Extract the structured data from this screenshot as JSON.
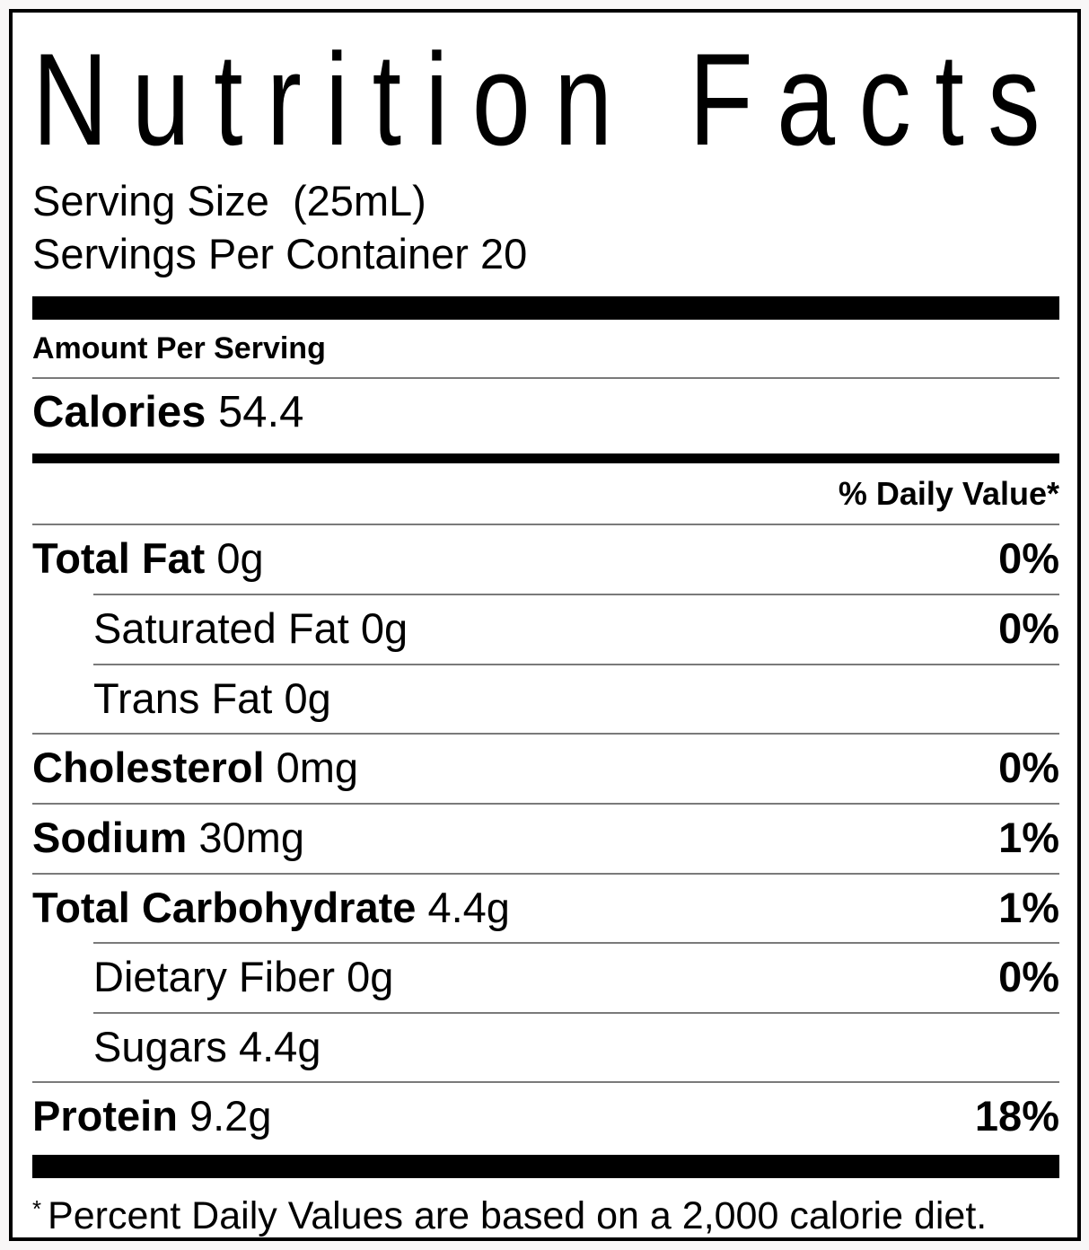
{
  "nutrition_label": {
    "title": "Nutrition Facts",
    "serving": {
      "serving_size": "Serving Size  (25mL)",
      "servings_per_container": "Servings Per Container 20"
    },
    "amount_per_serving": "Amount Per Serving",
    "calories": {
      "label": "Calories",
      "value": "54.4"
    },
    "daily_value_header": "% Daily Value*",
    "nutrients": [
      {
        "name": "Total Fat",
        "amount": "0g",
        "dv": "0%",
        "bold": true,
        "indent": false,
        "sep": "none"
      },
      {
        "name": "Saturated Fat",
        "amount": "0g",
        "dv": "0%",
        "bold": false,
        "indent": true,
        "sep": "indent"
      },
      {
        "name": "Trans Fat",
        "amount": "0g",
        "dv": "",
        "bold": false,
        "indent": true,
        "sep": "indent"
      },
      {
        "name": "Cholesterol",
        "amount": "0mg",
        "dv": "0%",
        "bold": true,
        "indent": false,
        "sep": "full"
      },
      {
        "name": "Sodium",
        "amount": "30mg",
        "dv": "1%",
        "bold": true,
        "indent": false,
        "sep": "full"
      },
      {
        "name": "Total Carbohydrate",
        "amount": "4.4g",
        "dv": "1%",
        "bold": true,
        "indent": false,
        "sep": "full"
      },
      {
        "name": "Dietary Fiber",
        "amount": "0g",
        "dv": "0%",
        "bold": false,
        "indent": true,
        "sep": "indent"
      },
      {
        "name": "Sugars",
        "amount": "4.4g",
        "dv": "",
        "bold": false,
        "indent": true,
        "sep": "indent"
      },
      {
        "name": "Protein",
        "amount": "9.2g",
        "dv": "18%",
        "bold": true,
        "indent": false,
        "sep": "full"
      }
    ],
    "footnote": {
      "asterisk": "*",
      "text": "Percent Daily Values are based on a 2,000 calorie diet."
    },
    "colors": {
      "text": "#000000",
      "label_background": "#ffffff",
      "page_background": "#f8f7f7",
      "hairline": "#7a7a7a",
      "bar": "#000000",
      "border": "#000000"
    }
  }
}
